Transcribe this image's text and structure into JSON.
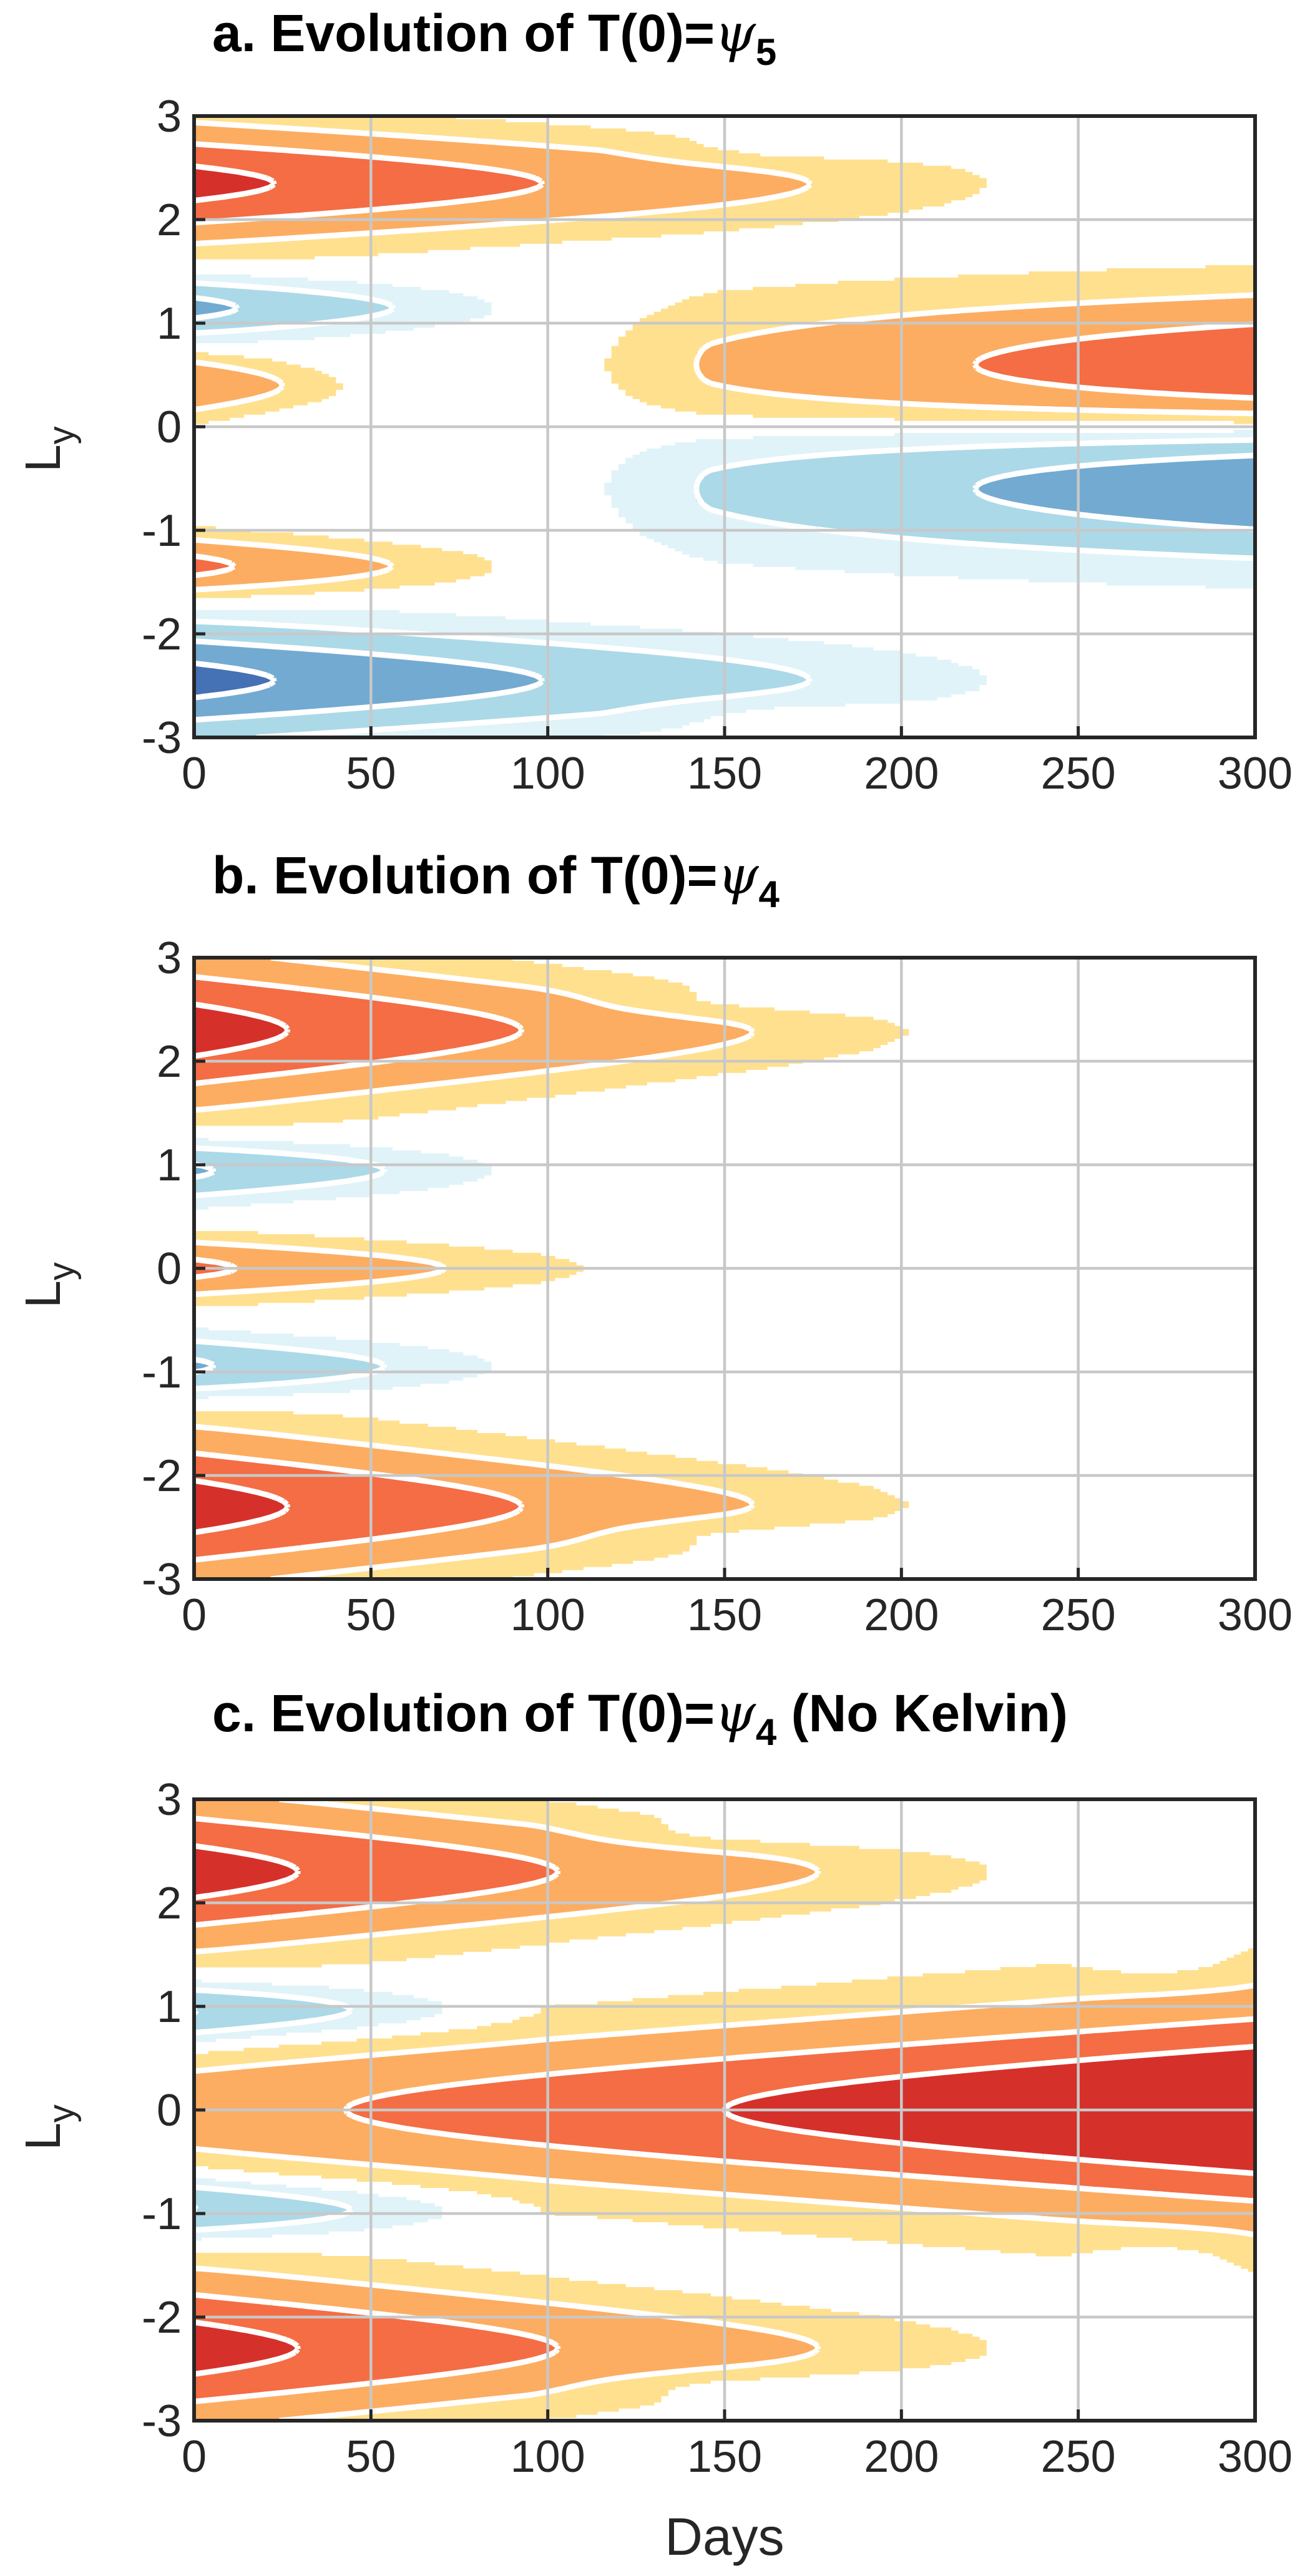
{
  "colors": {
    "neg3": "#4571b5",
    "neg2": "#73aad1",
    "neg1": "#abd9e8",
    "neg0": "#e0f3f8",
    "pos0": "#fee08f",
    "pos1": "#fcad61",
    "pos2": "#f46d44",
    "pos3": "#d6302b",
    "contour": "#ffffff",
    "grid": "#c8c8c8"
  },
  "chart_data": [
    {
      "type": "heatmap",
      "title_text": "a. Evolution of T(0)=",
      "title_symbol": "ψ",
      "title_subscript": "5",
      "title_suffix": "",
      "xlabel": "",
      "ylabel": "L",
      "ylabel_subscript": "y",
      "xlim": [
        0,
        300
      ],
      "ylim": [
        -3,
        3
      ],
      "xticks": [
        "0",
        "50",
        "100",
        "150",
        "200",
        "250",
        "300"
      ],
      "yticks": [
        "3",
        "2",
        "1",
        "0",
        "-1",
        "-2",
        "-3"
      ],
      "grid": true,
      "features": [
        {
          "y": 2.35,
          "sign": 1,
          "a0": 3.3,
          "x_end": 250,
          "w0": 0.38,
          "w1": 0.2
        },
        {
          "y": 1.15,
          "sign": -1,
          "a0": 2.3,
          "x_end": 100,
          "w0": 0.2,
          "w1": 0.12
        },
        {
          "y": 0.4,
          "sign": 1,
          "a0": 2.0,
          "x_end": 50,
          "w0": 0.2,
          "w1": 0.12
        },
        {
          "y": 0.5,
          "sign": 1,
          "a0": 0.9,
          "x_start": 120,
          "a1": 3.3,
          "w0": 0.5,
          "w1": 0.5
        },
        {
          "y": -0.5,
          "sign": -1,
          "a0": 0.9,
          "x_start": 120,
          "a1": 3.3,
          "w0": 0.5,
          "w1": 0.5
        },
        {
          "y": -1.35,
          "sign": 1,
          "a0": 2.3,
          "x_end": 100,
          "w0": 0.2,
          "w1": 0.12
        },
        {
          "y": -2.45,
          "sign": -1,
          "a0": 3.3,
          "x_end": 250,
          "w0": 0.38,
          "w1": 0.2
        },
        {
          "y": 2.65,
          "sign": -1,
          "a0": 0.5,
          "x_start": 140,
          "x_end": 230,
          "w0": 0.1,
          "w1": 0.1
        },
        {
          "y": -2.75,
          "sign": 1,
          "a0": 0.5,
          "x_start": 140,
          "x_end": 230,
          "w0": 0.1,
          "w1": 0.1
        }
      ]
    },
    {
      "type": "heatmap",
      "title_text": "b. Evolution of T(0)=",
      "title_symbol": "ψ",
      "title_subscript": "4",
      "title_suffix": "",
      "xlabel": "",
      "ylabel": "L",
      "ylabel_subscript": "y",
      "xlim": [
        0,
        300
      ],
      "ylim": [
        -3,
        3
      ],
      "xticks": [
        "0",
        "50",
        "100",
        "150",
        "200",
        "250",
        "300"
      ],
      "yticks": [
        "3",
        "2",
        "1",
        "0",
        "-1",
        "-2",
        "-3"
      ],
      "grid": true,
      "features": [
        {
          "y": 2.3,
          "sign": 1,
          "a0": 3.4,
          "x_end": 225,
          "w0": 0.5,
          "w1": 0.16
        },
        {
          "y": -2.3,
          "sign": 1,
          "a0": 3.4,
          "x_end": 225,
          "w0": 0.5,
          "w1": 0.16
        },
        {
          "y": 0.95,
          "sign": -1,
          "a0": 2.2,
          "x_end": 100,
          "w0": 0.2,
          "w1": 0.12
        },
        {
          "y": -0.95,
          "sign": -1,
          "a0": 2.2,
          "x_end": 100,
          "w0": 0.2,
          "w1": 0.12
        },
        {
          "y": 0.0,
          "sign": 1,
          "a0": 2.2,
          "x_end": 130,
          "w0": 0.2,
          "w1": 0.12
        },
        {
          "y": 2.55,
          "sign": -1,
          "a0": 0.55,
          "x_start": 120,
          "x_end": 240,
          "w0": 0.1,
          "w1": 0.1
        },
        {
          "y": -2.55,
          "sign": -1,
          "a0": 0.55,
          "x_start": 120,
          "x_end": 240,
          "w0": 0.1,
          "w1": 0.1
        }
      ]
    },
    {
      "type": "heatmap",
      "title_text": "c. Evolution of T(0)=",
      "title_symbol": "ψ",
      "title_subscript": "4",
      "title_suffix": " (No Kelvin)",
      "xlabel": "Days",
      "ylabel": "L",
      "ylabel_subscript": "y",
      "xlim": [
        0,
        300
      ],
      "ylim": [
        -3,
        3
      ],
      "xticks": [
        "0",
        "50",
        "100",
        "150",
        "200",
        "250",
        "300"
      ],
      "yticks": [
        "3",
        "2",
        "1",
        "0",
        "-1",
        "-2",
        "-3"
      ],
      "grid": true,
      "features": [
        {
          "y": 2.3,
          "sign": 1,
          "a0": 3.4,
          "x_end": 250,
          "w0": 0.5,
          "w1": 0.16
        },
        {
          "y": -2.3,
          "sign": 1,
          "a0": 3.4,
          "x_end": 250,
          "w0": 0.5,
          "w1": 0.16
        },
        {
          "y": 0.95,
          "sign": -1,
          "a0": 2.2,
          "x_end": 100,
          "w0": 0.2,
          "w1": 0.12
        },
        {
          "y": -0.95,
          "sign": -1,
          "a0": 2.2,
          "x_end": 100,
          "w0": 0.2,
          "w1": 0.12
        },
        {
          "y": 0.0,
          "sign": 1,
          "a0": 1.6,
          "a1": 4.4,
          "w0": 0.4,
          "w1": 0.7
        },
        {
          "y": 2.65,
          "sign": -1,
          "a0": 0.55,
          "x_start": 120,
          "x_end": 300,
          "w0": 0.1,
          "w1": 0.1
        },
        {
          "y": -2.65,
          "sign": -1,
          "a0": 0.55,
          "x_start": 120,
          "x_end": 300,
          "w0": 0.1,
          "w1": 0.1
        },
        {
          "y": 1.4,
          "sign": -1,
          "a0": 0.6,
          "x_start": 270,
          "x_end": 300,
          "w0": 0.15,
          "w1": 0.15
        },
        {
          "y": -1.4,
          "sign": -1,
          "a0": 0.6,
          "x_start": 270,
          "x_end": 300,
          "w0": 0.15,
          "w1": 0.15
        }
      ]
    }
  ]
}
